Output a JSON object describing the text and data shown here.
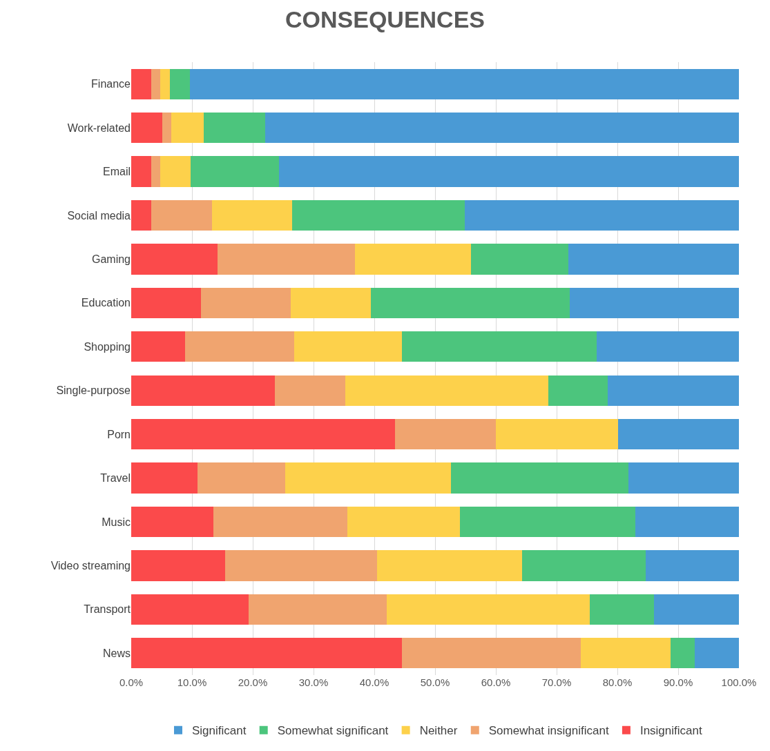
{
  "chart_data": {
    "type": "bar",
    "orientation": "horizontal",
    "stacked": true,
    "title": "CONSEQUENCES",
    "categories": [
      "Finance",
      "Work-related",
      "Email",
      "Social media",
      "Gaming",
      "Education",
      "Shopping",
      "Single-purpose",
      "Porn",
      "Travel",
      "Music",
      "Video streaming",
      "Transport",
      "News"
    ],
    "series": [
      {
        "name": "Insignificant",
        "color": "#fb4a4b",
        "values": [
          3.3,
          5.1,
          3.3,
          3.3,
          14.2,
          11.5,
          8.9,
          23.6,
          43.4,
          10.9,
          13.5,
          15.4,
          19.3,
          44.5
        ]
      },
      {
        "name": "Somewhat insignificant",
        "color": "#f0a46f",
        "values": [
          1.5,
          1.5,
          1.5,
          10.0,
          22.6,
          14.7,
          17.9,
          11.6,
          16.6,
          14.4,
          22.1,
          25.1,
          22.7,
          29.5
        ]
      },
      {
        "name": "Neither",
        "color": "#fdd14b",
        "values": [
          1.6,
          5.3,
          5.0,
          13.2,
          19.1,
          13.2,
          17.7,
          33.4,
          20.1,
          27.3,
          18.5,
          23.8,
          33.5,
          14.7
        ]
      },
      {
        "name": "Somewhat significant",
        "color": "#4cc57d",
        "values": [
          3.3,
          10.2,
          14.5,
          28.4,
          16.0,
          32.8,
          32.1,
          9.8,
          0,
          29.2,
          28.9,
          20.4,
          10.5,
          4.0
        ]
      },
      {
        "name": "Significant",
        "color": "#4a9ad5",
        "values": [
          90.3,
          77.9,
          75.7,
          45.1,
          28.1,
          27.8,
          23.4,
          21.6,
          19.9,
          18.2,
          17.0,
          15.3,
          14.0,
          7.3
        ]
      }
    ],
    "xlim": [
      0,
      100
    ],
    "xticks": [
      {
        "value": 0,
        "label": "0.0%"
      },
      {
        "value": 10,
        "label": "10.0%"
      },
      {
        "value": 20,
        "label": "20.0%"
      },
      {
        "value": 30,
        "label": "30.0%"
      },
      {
        "value": 40,
        "label": "40.0%"
      },
      {
        "value": 50,
        "label": "50.0%"
      },
      {
        "value": 60,
        "label": "60.0%"
      },
      {
        "value": 70,
        "label": "70.0%"
      },
      {
        "value": 80,
        "label": "80.0%"
      },
      {
        "value": 90,
        "label": "90.0%"
      },
      {
        "value": 100,
        "label": "100.0%"
      }
    ],
    "grid": "x",
    "legend": "bottom"
  }
}
